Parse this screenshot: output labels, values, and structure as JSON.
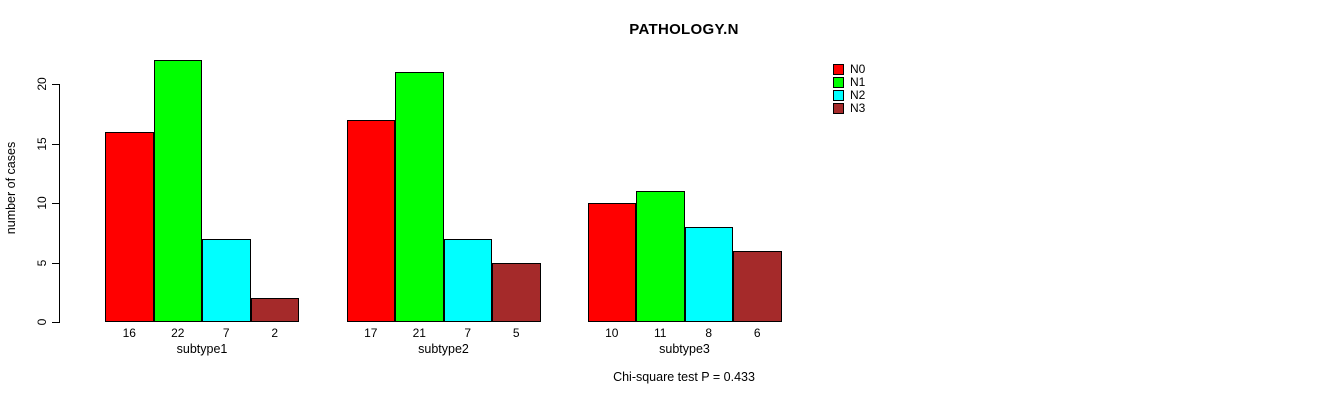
{
  "title": "PATHOLOGY.N",
  "ylabel": "number of cases",
  "footer": "Chi-square test P = 0.433",
  "chart_data": {
    "type": "bar",
    "title": "PATHOLOGY.N",
    "xlabel": "",
    "ylabel": "number of cases",
    "categories": [
      "subtype1",
      "subtype2",
      "subtype3"
    ],
    "series": [
      {
        "name": "N0",
        "color": "#FF0000",
        "values": [
          16,
          17,
          10
        ]
      },
      {
        "name": "N1",
        "color": "#00FF00",
        "values": [
          22,
          21,
          11
        ]
      },
      {
        "name": "N2",
        "color": "#00FFFF",
        "values": [
          7,
          7,
          8
        ]
      },
      {
        "name": "N3",
        "color": "#A52A2A",
        "values": [
          2,
          5,
          6
        ]
      }
    ],
    "bar_value_labels": [
      [
        "16",
        "22",
        "7",
        "2"
      ],
      [
        "17",
        "21",
        "7",
        "5"
      ],
      [
        "10",
        "11",
        "8",
        "6"
      ]
    ],
    "yticks": [
      0,
      5,
      10,
      15,
      20
    ],
    "ylim": [
      0,
      20
    ],
    "grid": false,
    "legend_position": "top-right",
    "legend_entries": [
      "N0",
      "N1",
      "N2",
      "N3"
    ],
    "annotation": "Chi-square test P = 0.433",
    "bar_border_color": "#000000",
    "background_color": "#FFFFFF"
  }
}
